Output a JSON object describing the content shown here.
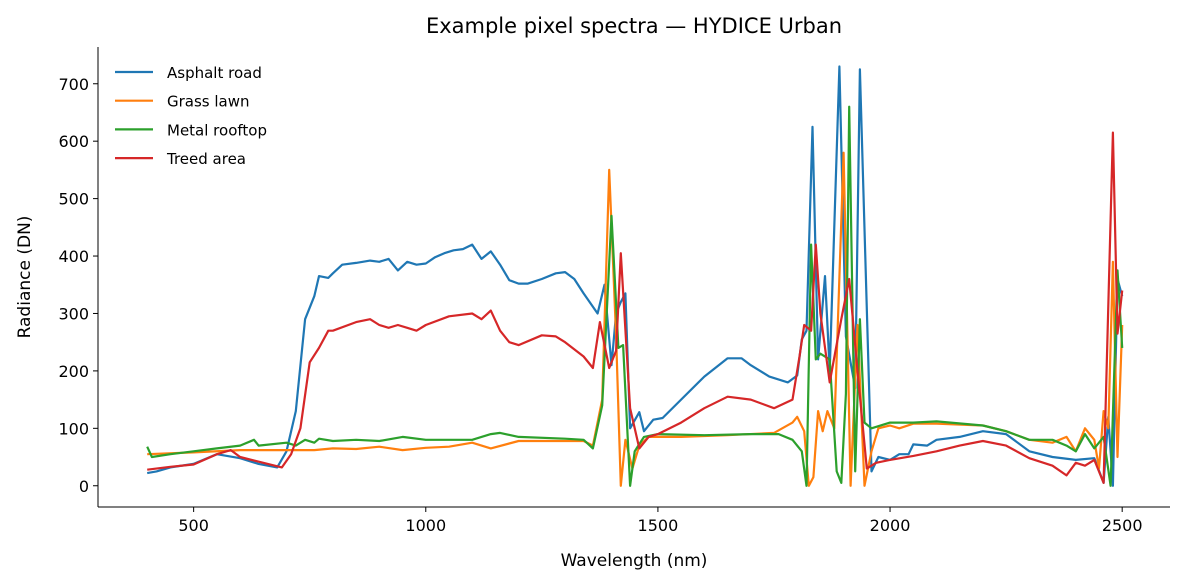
{
  "chart_data": {
    "type": "line",
    "title": "Example pixel spectra — HYDICE Urban",
    "xlabel": "Wavelength (nm)",
    "ylabel": "Radiance (DN)",
    "xlim": [
      294,
      2603
    ],
    "ylim": [
      -37,
      764
    ],
    "xticks": [
      500,
      1000,
      1500,
      2000,
      2500
    ],
    "yticks": [
      0,
      100,
      200,
      300,
      400,
      500,
      600,
      700
    ],
    "grid": false,
    "legend_position": "top-left",
    "series": [
      {
        "name": "Asphalt road",
        "color": "#1f77b4",
        "x": [
          400,
          420,
          450,
          500,
          550,
          600,
          640,
          680,
          700,
          720,
          740,
          760,
          770,
          790,
          800,
          820,
          850,
          880,
          900,
          920,
          940,
          960,
          980,
          1000,
          1020,
          1040,
          1060,
          1080,
          1100,
          1120,
          1140,
          1160,
          1180,
          1200,
          1220,
          1250,
          1280,
          1300,
          1320,
          1340,
          1370,
          1385,
          1400,
          1410,
          1420,
          1430,
          1440,
          1460,
          1470,
          1490,
          1510,
          1550,
          1600,
          1650,
          1680,
          1700,
          1740,
          1780,
          1800,
          1810,
          1820,
          1833,
          1845,
          1860,
          1870,
          1891,
          1905,
          1925,
          1935,
          1960,
          1975,
          2000,
          2020,
          2040,
          2050,
          2080,
          2100,
          2150,
          2200,
          2250,
          2300,
          2350,
          2400,
          2440,
          2460,
          2470,
          2480,
          2490,
          2500
        ],
        "y": [
          22,
          25,
          32,
          38,
          55,
          48,
          38,
          32,
          60,
          130,
          290,
          330,
          365,
          362,
          370,
          385,
          388,
          392,
          390,
          395,
          375,
          390,
          385,
          387,
          398,
          405,
          410,
          412,
          420,
          395,
          408,
          385,
          358,
          352,
          352,
          360,
          370,
          372,
          360,
          335,
          300,
          350,
          210,
          300,
          320,
          335,
          100,
          128,
          95,
          115,
          118,
          150,
          190,
          222,
          222,
          210,
          190,
          180,
          192,
          255,
          270,
          625,
          220,
          365,
          200,
          730,
          260,
          170,
          725,
          25,
          50,
          45,
          55,
          55,
          72,
          70,
          80,
          85,
          95,
          90,
          60,
          50,
          45,
          48,
          5,
          120,
          0,
          360,
          330
        ]
      },
      {
        "name": "Grass lawn",
        "color": "#ff7f0e",
        "x": [
          400,
          500,
          600,
          700,
          760,
          800,
          850,
          900,
          950,
          1000,
          1050,
          1100,
          1140,
          1200,
          1250,
          1300,
          1340,
          1360,
          1380,
          1395,
          1410,
          1420,
          1430,
          1445,
          1460,
          1480,
          1550,
          1650,
          1750,
          1790,
          1800,
          1815,
          1825,
          1835,
          1845,
          1855,
          1865,
          1880,
          1900,
          1915,
          1930,
          1945,
          1960,
          1975,
          2000,
          2020,
          2050,
          2100,
          2200,
          2250,
          2300,
          2350,
          2380,
          2400,
          2420,
          2440,
          2450,
          2460,
          2470,
          2480,
          2490,
          2500
        ],
        "y": [
          55,
          58,
          62,
          62,
          62,
          65,
          64,
          68,
          62,
          66,
          68,
          75,
          65,
          78,
          78,
          78,
          78,
          70,
          150,
          550,
          260,
          0,
          80,
          30,
          70,
          85,
          85,
          88,
          92,
          110,
          120,
          95,
          0,
          15,
          130,
          95,
          130,
          100,
          580,
          0,
          280,
          0,
          60,
          100,
          105,
          100,
          108,
          108,
          105,
          95,
          80,
          75,
          85,
          60,
          100,
          80,
          30,
          130,
          100,
          390,
          50,
          280
        ]
      },
      {
        "name": "Metal rooftop",
        "color": "#2ca02c",
        "x": [
          400,
          410,
          450,
          500,
          550,
          600,
          630,
          640,
          700,
          720,
          740,
          760,
          770,
          800,
          850,
          900,
          950,
          1000,
          1050,
          1100,
          1140,
          1160,
          1200,
          1300,
          1340,
          1360,
          1380,
          1400,
          1415,
          1425,
          1440,
          1450,
          1470,
          1500,
          1600,
          1700,
          1760,
          1790,
          1810,
          1820,
          1830,
          1840,
          1850,
          1870,
          1885,
          1895,
          1905,
          1912,
          1925,
          1935,
          1945,
          1960,
          2000,
          2050,
          2100,
          2200,
          2250,
          2300,
          2350,
          2380,
          2400,
          2420,
          2440,
          2460,
          2475,
          2490,
          2500
        ],
        "y": [
          68,
          50,
          55,
          60,
          65,
          70,
          80,
          70,
          75,
          70,
          80,
          75,
          82,
          78,
          80,
          78,
          85,
          80,
          80,
          80,
          90,
          92,
          85,
          82,
          80,
          65,
          140,
          470,
          240,
          245,
          0,
          60,
          85,
          90,
          88,
          90,
          90,
          80,
          60,
          0,
          420,
          220,
          230,
          220,
          25,
          5,
          160,
          660,
          25,
          290,
          110,
          100,
          110,
          110,
          112,
          105,
          95,
          80,
          80,
          70,
          60,
          90,
          65,
          85,
          0,
          375,
          240
        ]
      },
      {
        "name": "Treed area",
        "color": "#d62728",
        "x": [
          400,
          450,
          500,
          550,
          580,
          600,
          650,
          690,
          710,
          730,
          750,
          770,
          790,
          800,
          850,
          880,
          900,
          920,
          940,
          960,
          980,
          1000,
          1050,
          1100,
          1120,
          1140,
          1160,
          1180,
          1200,
          1250,
          1280,
          1300,
          1340,
          1360,
          1375,
          1395,
          1410,
          1420,
          1440,
          1460,
          1480,
          1500,
          1550,
          1600,
          1650,
          1700,
          1750,
          1790,
          1805,
          1815,
          1830,
          1840,
          1850,
          1870,
          1895,
          1912,
          1930,
          1950,
          1970,
          2000,
          2050,
          2100,
          2150,
          2200,
          2250,
          2300,
          2350,
          2380,
          2400,
          2420,
          2440,
          2460,
          2480,
          2490,
          2500
        ],
        "y": [
          28,
          33,
          37,
          55,
          62,
          50,
          40,
          32,
          55,
          100,
          215,
          240,
          270,
          270,
          285,
          290,
          280,
          275,
          280,
          275,
          270,
          280,
          295,
          300,
          290,
          305,
          270,
          250,
          245,
          262,
          260,
          250,
          225,
          205,
          285,
          205,
          235,
          405,
          135,
          65,
          85,
          90,
          110,
          135,
          155,
          150,
          135,
          150,
          225,
          280,
          270,
          420,
          300,
          180,
          290,
          360,
          200,
          30,
          40,
          45,
          52,
          60,
          70,
          78,
          70,
          48,
          35,
          18,
          40,
          35,
          45,
          5,
          615,
          265,
          340
        ]
      }
    ]
  }
}
